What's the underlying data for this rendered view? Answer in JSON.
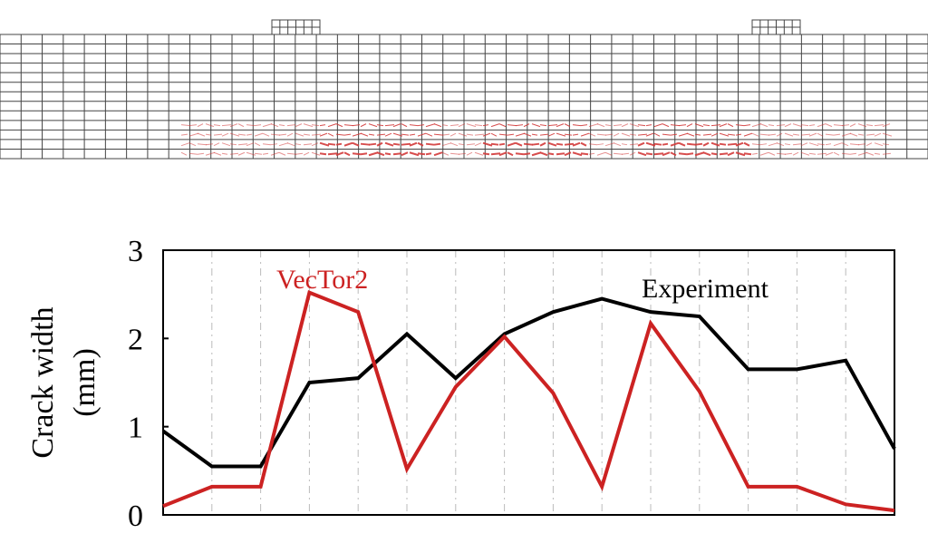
{
  "colors": {
    "experiment": "#000000",
    "vector2": "#cc2222",
    "mesh_line": "#444444",
    "crack": "#d33a3a",
    "grid": "#bbbbbb"
  },
  "mesh": {
    "main_cols": 44,
    "main_rows": 13,
    "support_cols": 6,
    "support_rows": 2,
    "crack_rows": 4
  },
  "chart_data": {
    "type": "line",
    "ylabel_line1": "Crack width",
    "ylabel_line2": "(mm)",
    "xlabel": "",
    "ylim": [
      0,
      3
    ],
    "yticks": [
      "0",
      "1",
      "2",
      "3"
    ],
    "x": [
      0,
      1,
      2,
      3,
      4,
      5,
      6,
      7,
      8,
      9,
      10,
      11,
      12,
      13,
      14,
      15
    ],
    "xlim": [
      0,
      15
    ],
    "grid": "vertical dashed",
    "series": [
      {
        "name": "Experiment",
        "values": [
          0.95,
          0.55,
          0.55,
          1.5,
          1.55,
          2.05,
          1.55,
          2.05,
          2.3,
          2.45,
          2.3,
          2.25,
          1.65,
          1.65,
          1.75,
          0.75
        ]
      },
      {
        "name": "VecTor2",
        "values": [
          0.1,
          0.32,
          0.32,
          2.52,
          2.3,
          0.52,
          1.45,
          2.02,
          1.38,
          0.32,
          2.17,
          1.4,
          0.32,
          0.32,
          0.12,
          0.05
        ]
      }
    ]
  }
}
